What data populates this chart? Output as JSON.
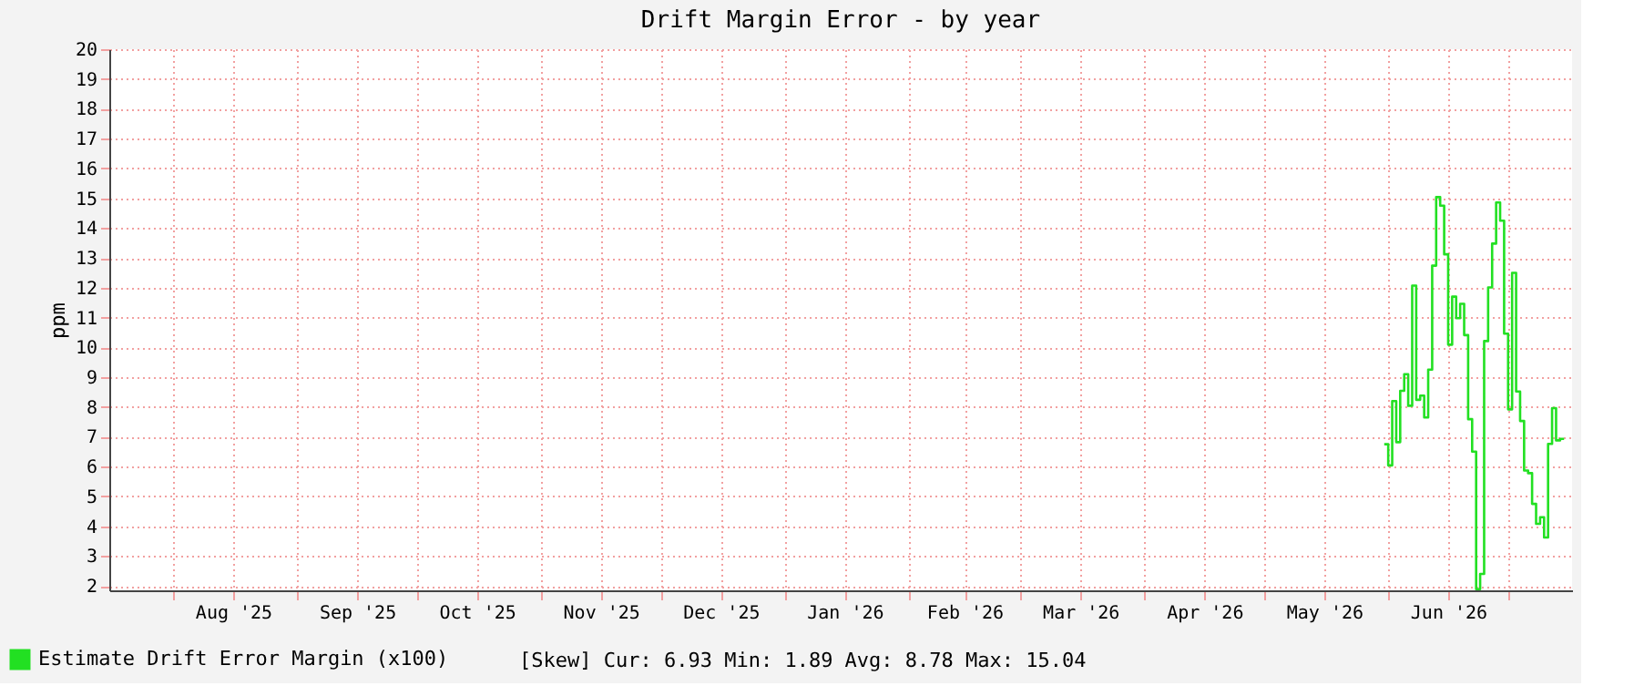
{
  "chart_data": {
    "type": "step",
    "title": "Drift Margin Error - by year",
    "ylabel": "ppm",
    "x": [
      "2026-05-31",
      "2026-06-01",
      "2026-06-02",
      "2026-06-03",
      "2026-06-04",
      "2026-06-05",
      "2026-06-06",
      "2026-06-07",
      "2026-06-08",
      "2026-06-09",
      "2026-06-10",
      "2026-06-11",
      "2026-06-12",
      "2026-06-13",
      "2026-06-14",
      "2026-06-15",
      "2026-06-16",
      "2026-06-17",
      "2026-06-18",
      "2026-06-19",
      "2026-06-20",
      "2026-06-21",
      "2026-06-22",
      "2026-06-23",
      "2026-06-24",
      "2026-06-25",
      "2026-06-26",
      "2026-06-27",
      "2026-06-28",
      "2026-06-29",
      "2026-06-30",
      "2026-07-01",
      "2026-07-02",
      "2026-07-03",
      "2026-07-04",
      "2026-07-05",
      "2026-07-06",
      "2026-07-07",
      "2026-07-08",
      "2026-07-09",
      "2026-07-10",
      "2026-07-11",
      "2026-07-12",
      "2026-07-13",
      "2026-07-14",
      "2026-07-15"
    ],
    "series": [
      {
        "name": "Estimate Drift Error Margin (x100)",
        "color": "#22e022",
        "values": [
          6.75,
          6.04,
          8.2,
          6.82,
          8.54,
          9.1,
          8.04,
          12.07,
          8.24,
          8.38,
          7.65,
          9.25,
          12.74,
          15.04,
          14.75,
          13.12,
          10.09,
          11.7,
          10.98,
          11.46,
          10.41,
          7.59,
          6.5,
          1.89,
          2.4,
          10.21,
          12.01,
          13.48,
          14.86,
          14.25,
          10.46,
          7.92,
          12.5,
          8.52,
          7.53,
          5.87,
          5.78,
          4.75,
          4.08,
          4.3,
          3.62,
          6.76,
          7.96,
          6.88,
          6.93,
          6.93
        ]
      }
    ],
    "xlim": [
      "2025-07-16",
      "2026-07-17"
    ],
    "xticks": [
      {
        "value": "2025-08-01",
        "label": null
      },
      {
        "value": "2025-08-16",
        "label": "Aug '25"
      },
      {
        "value": "2025-09-01",
        "label": null
      },
      {
        "value": "2025-09-16",
        "label": "Sep '25"
      },
      {
        "value": "2025-10-01",
        "label": null
      },
      {
        "value": "2025-10-16",
        "label": "Oct '25"
      },
      {
        "value": "2025-11-01",
        "label": null
      },
      {
        "value": "2025-11-16",
        "label": "Nov '25"
      },
      {
        "value": "2025-12-01",
        "label": null
      },
      {
        "value": "2025-12-16",
        "label": "Dec '25"
      },
      {
        "value": "2026-01-01",
        "label": null
      },
      {
        "value": "2026-01-16",
        "label": "Jan '26"
      },
      {
        "value": "2026-02-01",
        "label": null
      },
      {
        "value": "2026-02-15",
        "label": "Feb '26"
      },
      {
        "value": "2026-03-01",
        "label": null
      },
      {
        "value": "2026-03-16",
        "label": "Mar '26"
      },
      {
        "value": "2026-04-01",
        "label": null
      },
      {
        "value": "2026-04-16",
        "label": "Apr '26"
      },
      {
        "value": "2026-05-01",
        "label": null
      },
      {
        "value": "2026-05-16",
        "label": "May '26"
      },
      {
        "value": "2026-06-01",
        "label": null
      },
      {
        "value": "2026-06-16",
        "label": "Jun '26"
      },
      {
        "value": "2026-07-01",
        "label": null
      }
    ],
    "ylim": [
      1.85,
      20
    ],
    "yticks": [
      2,
      3,
      4,
      5,
      6,
      7,
      8,
      9,
      10,
      11,
      12,
      13,
      14,
      15,
      16,
      17,
      18,
      19,
      20
    ],
    "grid": true,
    "legend": "bottom left",
    "line_style": "solid",
    "annotations": [
      "[Skew]      Cur:    6.93  Min:    1.89  Avg:    8.78  Max:   15.04"
    ]
  }
}
